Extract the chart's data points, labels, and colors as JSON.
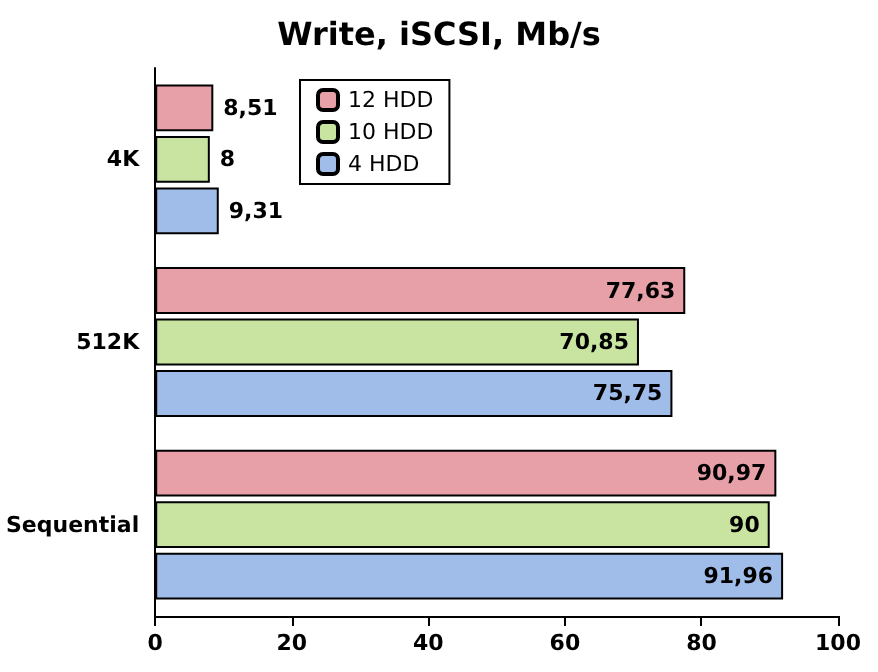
{
  "chart_data": {
    "type": "bar",
    "orientation": "horizontal",
    "title": "Write, iSCSI, Mb/s",
    "categories": [
      "4K",
      "512K",
      "Sequential"
    ],
    "series": [
      {
        "name": "12 HDD",
        "color": "#e8a0a8",
        "values": [
          8.51,
          77.63,
          90.97
        ],
        "value_labels": [
          "8,51",
          "77,63",
          "90,97"
        ]
      },
      {
        "name": "10 HDD",
        "color": "#c8e4a0",
        "values": [
          8,
          70.85,
          90
        ],
        "value_labels": [
          "8",
          "70,85",
          "90"
        ]
      },
      {
        "name": "4 HDD",
        "color": "#a0bce8",
        "values": [
          9.31,
          75.75,
          91.96
        ],
        "value_labels": [
          "9,31",
          "75,75",
          "91,96"
        ]
      }
    ],
    "xlim": [
      0,
      100
    ],
    "xticks": [
      0,
      20,
      40,
      60,
      80,
      100
    ],
    "grid": false,
    "legend": "top left"
  }
}
